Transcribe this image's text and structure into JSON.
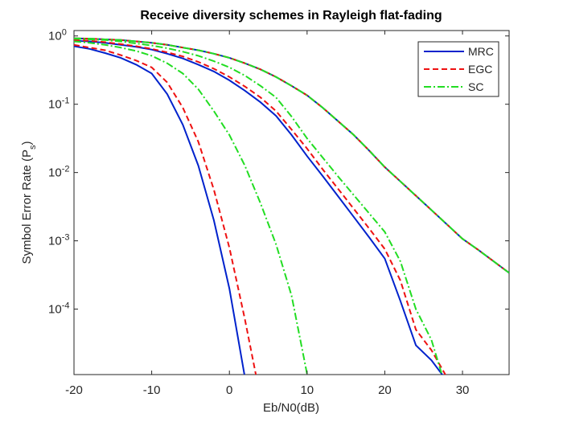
{
  "chart_data": {
    "type": "line",
    "title": "Receive diversity schemes in Rayleigh flat-fading",
    "xlabel": "Eb/N0(dB)",
    "ylabel": "Symbol Error Rate (P_s)",
    "log_y": true,
    "legend_position": "northeast",
    "x": [
      -20,
      -18,
      -16,
      -14,
      -12,
      -10,
      -8,
      -6,
      -4,
      -2,
      0,
      2,
      4,
      6,
      8,
      10,
      12,
      14,
      16,
      18,
      20,
      22,
      24,
      26,
      28,
      30,
      32,
      34,
      36
    ],
    "xlim": [
      -20,
      36
    ],
    "xticks": [
      -20,
      -10,
      0,
      10,
      20,
      30
    ],
    "ylim": [
      1.1e-05,
      1.2
    ],
    "yticks": [
      {
        "value": 0.0001,
        "label": "10^-4"
      },
      {
        "value": 0.001,
        "label": "10^-3"
      },
      {
        "value": 0.01,
        "label": "10^-2"
      },
      {
        "value": 0.1,
        "label": "10^-1"
      },
      {
        "value": 1,
        "label": "10^0"
      }
    ],
    "series": [
      {
        "name": "MRC",
        "color": "#0022cc",
        "line_style": "solid",
        "values": [
          [
            0.923,
            0.912,
            0.891,
            0.871,
            0.832,
            0.794,
            0.741,
            0.676,
            0.617,
            0.55,
            0.479,
            0.398,
            0.324,
            0.251,
            0.186,
            0.135,
            0.0891,
            0.0562,
            0.0355,
            0.0209,
            0.012,
            0.00741,
            0.00457,
            0.00282,
            0.00174,
            0.00107,
            0.000741,
            0.000501,
            0.000339
          ],
          [
            0.851,
            0.832,
            0.794,
            0.741,
            0.692,
            0.631,
            0.55,
            0.468,
            0.38,
            0.302,
            0.224,
            0.158,
            0.107,
            0.0676,
            0.0355,
            0.0174,
            0.00891,
            0.00447,
            0.00224,
            0.00112,
            0.00055,
            0.000132,
            2.95e-05,
            1.78e-05,
            8.9e-06,
            null,
            null,
            null,
            null
          ],
          [
            0.708,
            0.646,
            0.562,
            0.479,
            0.38,
            0.282,
            0.141,
            0.0501,
            0.0126,
            0.002,
            0.0002,
            1e-05,
            null,
            null,
            null,
            null,
            null,
            null,
            null,
            null,
            null,
            null,
            null,
            null,
            null,
            null,
            null,
            null,
            null
          ]
        ]
      },
      {
        "name": "EGC",
        "color": "#ee1111",
        "line_style": "dashed",
        "values": [
          [
            0.923,
            0.912,
            0.891,
            0.871,
            0.832,
            0.794,
            0.741,
            0.676,
            0.617,
            0.55,
            0.479,
            0.398,
            0.324,
            0.251,
            0.186,
            0.135,
            0.0891,
            0.0562,
            0.0355,
            0.0209,
            0.012,
            0.00741,
            0.00457,
            0.00282,
            0.00174,
            0.00107,
            0.000741,
            0.000501,
            0.000339
          ],
          [
            0.871,
            0.851,
            0.813,
            0.759,
            0.708,
            0.646,
            0.575,
            0.501,
            0.417,
            0.331,
            0.251,
            0.182,
            0.126,
            0.0794,
            0.0427,
            0.0224,
            0.0112,
            0.00575,
            0.00295,
            0.00151,
            0.000759,
            0.000263,
            5.01e-05,
            2.51e-05,
            1e-05,
            null,
            null,
            null,
            null
          ],
          [
            0.741,
            0.676,
            0.617,
            0.525,
            0.437,
            0.347,
            0.209,
            0.0891,
            0.0282,
            0.00562,
            0.000794,
            7.08e-05,
            5e-06,
            null,
            null,
            null,
            null,
            null,
            null,
            null,
            null,
            null,
            null,
            null,
            null,
            null,
            null,
            null,
            null
          ]
        ]
      },
      {
        "name": "SC",
        "color": "#22dd22",
        "line_style": "dash-dot",
        "values": [
          [
            0.923,
            0.912,
            0.891,
            0.871,
            0.832,
            0.794,
            0.741,
            0.676,
            0.617,
            0.55,
            0.479,
            0.398,
            0.324,
            0.251,
            0.186,
            0.135,
            0.0891,
            0.0562,
            0.0355,
            0.0209,
            0.012,
            0.00741,
            0.00457,
            0.00282,
            0.00174,
            0.00107,
            0.000741,
            0.000501,
            0.000339
          ],
          [
            0.912,
            0.891,
            0.871,
            0.832,
            0.776,
            0.724,
            0.661,
            0.589,
            0.513,
            0.427,
            0.347,
            0.263,
            0.186,
            0.126,
            0.0661,
            0.0316,
            0.0166,
            0.00871,
            0.00468,
            0.00251,
            0.00135,
            0.000501,
            0.0001,
            3.55e-05,
            6.3e-06,
            null,
            null,
            null,
            null
          ],
          [
            0.832,
            0.794,
            0.741,
            0.676,
            0.603,
            0.513,
            0.398,
            0.282,
            0.166,
            0.0794,
            0.0355,
            0.0126,
            0.00355,
            0.000891,
            0.000158,
            1.12e-05,
            null,
            null,
            null,
            null,
            null,
            null,
            null,
            null,
            null,
            null,
            null,
            null,
            null
          ]
        ]
      }
    ]
  }
}
